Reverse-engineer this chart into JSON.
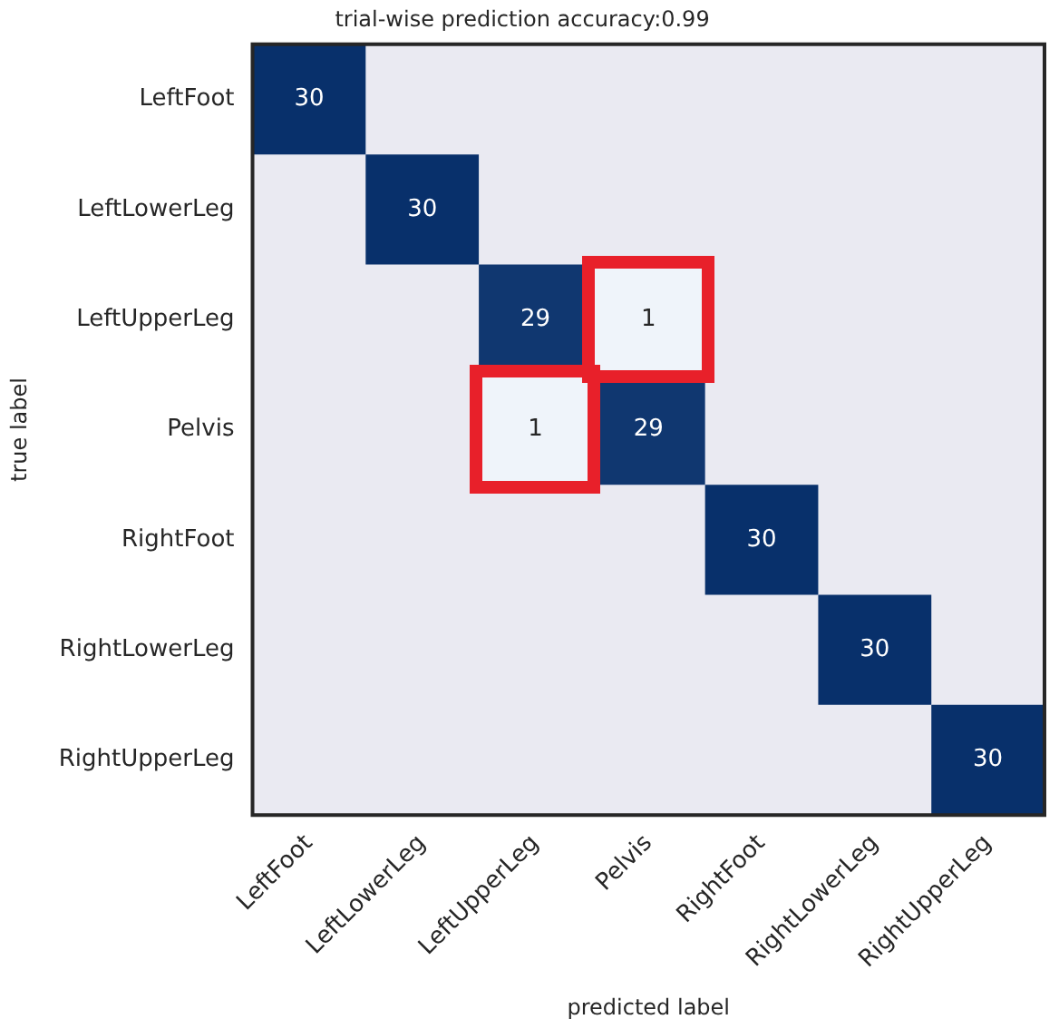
{
  "chart_data": {
    "type": "heatmap",
    "title": "trial-wise prediction accuracy:0.99",
    "xlabel": "predicted label",
    "ylabel": "true label",
    "categories": [
      "LeftFoot",
      "LeftLowerLeg",
      "LeftUpperLeg",
      "Pelvis",
      "RightFoot",
      "RightLowerLeg",
      "RightUpperLeg"
    ],
    "y_categories": [
      "LeftFoot",
      "LeftLowerLeg",
      "LeftUpperLeg",
      "Pelvis",
      "RightFoot",
      "RightLowerLeg",
      "RightUpperLeg"
    ],
    "cells": [
      [
        30,
        null,
        null,
        null,
        null,
        null,
        null
      ],
      [
        null,
        30,
        null,
        null,
        null,
        null,
        null
      ],
      [
        null,
        null,
        29,
        1,
        null,
        null,
        null
      ],
      [
        null,
        null,
        1,
        29,
        null,
        null,
        null
      ],
      [
        null,
        null,
        null,
        null,
        30,
        null,
        null
      ],
      [
        null,
        null,
        null,
        null,
        null,
        30,
        null
      ],
      [
        null,
        null,
        null,
        null,
        null,
        null,
        30
      ]
    ],
    "data_labels": true
  }
}
